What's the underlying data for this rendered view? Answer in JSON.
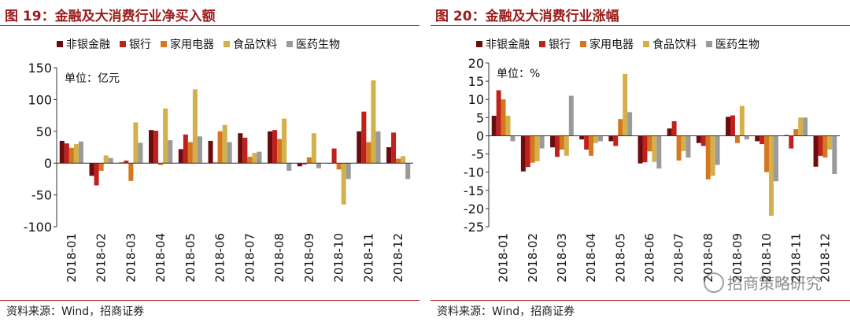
{
  "panels": [
    {
      "title": "图 19：金融及大消费行业净买入额",
      "source": "资料来源：Wind，招商证券"
    },
    {
      "title": "图 20：金融及大消费行业涨幅",
      "source": "资料来源：Wind，招商证券"
    }
  ],
  "watermark": "招商策略研究",
  "chart_data": [
    {
      "type": "bar",
      "unit_label": "单位：亿元",
      "ylim": [
        -100,
        150
      ],
      "yticks": [
        -100,
        -50,
        0,
        50,
        100,
        150
      ],
      "legend_position": "top",
      "categories": [
        "2018-01",
        "2018-02",
        "2018-03",
        "2018-04",
        "2018-05",
        "2018-06",
        "2018-07",
        "2018-08",
        "2018-09",
        "2018-10",
        "2018-11",
        "2018-12"
      ],
      "series": [
        {
          "name": "非银金融",
          "color": "#6b0d0d",
          "values": [
            35,
            -20,
            1,
            52,
            22,
            35,
            47,
            50,
            -5,
            0,
            50,
            25
          ]
        },
        {
          "name": "银行",
          "color": "#c0201e",
          "values": [
            31,
            -35,
            4,
            51,
            45,
            1,
            40,
            52,
            -2,
            23,
            81,
            48
          ]
        },
        {
          "name": "家用电器",
          "color": "#d4771f",
          "values": [
            24,
            -12,
            -28,
            -3,
            33,
            50,
            10,
            38,
            9,
            -10,
            33,
            7
          ]
        },
        {
          "name": "食品饮料",
          "color": "#d4b04a",
          "values": [
            30,
            12,
            64,
            86,
            116,
            60,
            16,
            70,
            47,
            -65,
            130,
            11
          ]
        },
        {
          "name": "医药生物",
          "color": "#9a9a9a",
          "values": [
            34,
            8,
            32,
            36,
            42,
            33,
            18,
            -12,
            -8,
            -25,
            50,
            -25
          ]
        }
      ]
    },
    {
      "type": "bar",
      "unit_label": "单位：%",
      "ylim": [
        -25,
        20
      ],
      "yticks": [
        -25,
        -20,
        -15,
        -10,
        -5,
        0,
        5,
        10,
        15,
        20
      ],
      "legend_position": "top",
      "categories": [
        "2018-01",
        "2018-02",
        "2018-03",
        "2018-04",
        "2018-05",
        "2018-06",
        "2018-07",
        "2018-08",
        "2018-09",
        "2018-10",
        "2018-11",
        "2018-12"
      ],
      "series": [
        {
          "name": "非银金融",
          "color": "#6b0d0d",
          "values": [
            5.5,
            -9.8,
            -3.2,
            -1.0,
            -1.5,
            -7.6,
            2.0,
            -2.0,
            5.2,
            -1.5,
            0.2,
            -8.5
          ]
        },
        {
          "name": "银行",
          "color": "#c0201e",
          "values": [
            12.5,
            -8.6,
            -5.8,
            -3.8,
            -2.8,
            -7.3,
            4.0,
            -2.8,
            5.6,
            -2.3,
            -3.5,
            -5.5
          ]
        },
        {
          "name": "家用电器",
          "color": "#d4771f",
          "values": [
            10.0,
            -7.4,
            -3.8,
            -5.5,
            4.6,
            -4.3,
            -6.8,
            -12.0,
            -2.0,
            -10.0,
            1.8,
            -6.0
          ]
        },
        {
          "name": "食品饮料",
          "color": "#d4b04a",
          "values": [
            5.5,
            -7.0,
            -5.5,
            -2.0,
            17.0,
            -7.2,
            -4.2,
            -11.0,
            8.2,
            -22.0,
            5.0,
            -3.8
          ]
        },
        {
          "name": "医药生物",
          "color": "#9a9a9a",
          "values": [
            -1.5,
            -3.5,
            11.0,
            -1.5,
            6.5,
            -9.0,
            -6.0,
            -8.0,
            -1.0,
            -12.5,
            5.0,
            -10.5
          ]
        }
      ]
    }
  ]
}
